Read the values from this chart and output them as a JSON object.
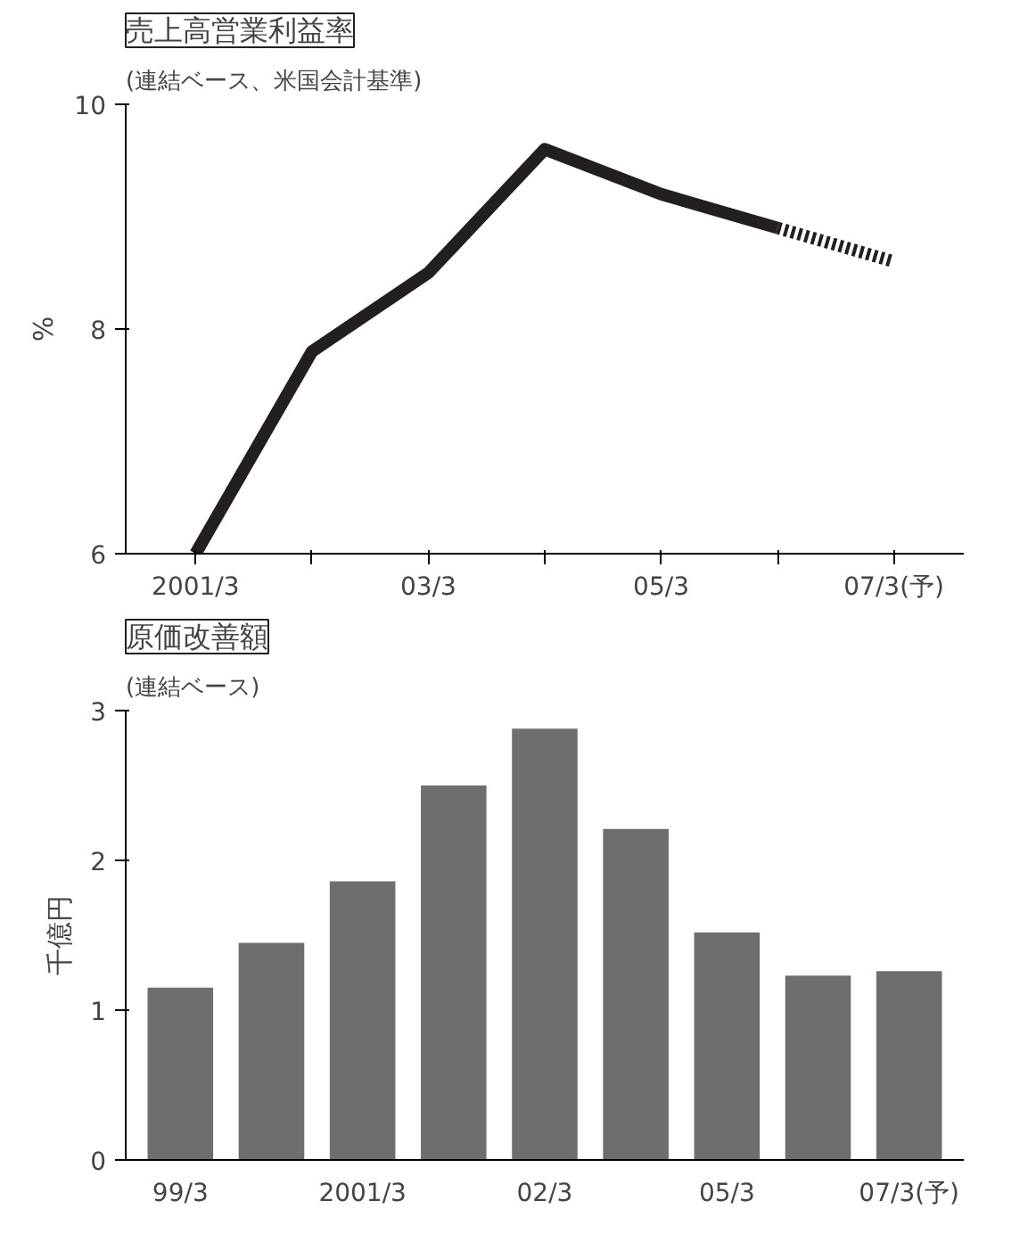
{
  "chart_data": [
    {
      "type": "line",
      "title": "売上高営業利益率",
      "subtitle": "(連結ベース、米国会計基準)",
      "ylabel": "%",
      "categories": [
        "2001/3",
        null,
        "03/3",
        null,
        "05/3",
        null,
        "07/3(予)"
      ],
      "series": [
        {
          "color": "#231f20",
          "line_style": "solid",
          "values": [
            6.0,
            7.8,
            8.5,
            9.6,
            9.2,
            8.9,
            null
          ]
        },
        {
          "color": "#231f20",
          "line_style": "dotted",
          "values": [
            null,
            null,
            null,
            null,
            null,
            8.9,
            8.6
          ]
        }
      ],
      "ylim": [
        6,
        10
      ],
      "yticks": [
        6,
        8,
        10
      ],
      "grid": false,
      "marker": "none"
    },
    {
      "type": "bar",
      "title": "原価改善額",
      "subtitle": "(連結ベース)",
      "ylabel": "千億円",
      "categories": [
        "99/3",
        null,
        "2001/3",
        null,
        "02/3",
        null,
        "05/3",
        null,
        "07/3(予)"
      ],
      "values": [
        1.15,
        1.45,
        1.86,
        2.5,
        2.88,
        2.21,
        1.52,
        1.23,
        1.26
      ],
      "color": "#6d6e70",
      "ylim": [
        0,
        3
      ],
      "yticks": [
        0,
        1,
        2,
        3
      ],
      "grid": false
    }
  ]
}
